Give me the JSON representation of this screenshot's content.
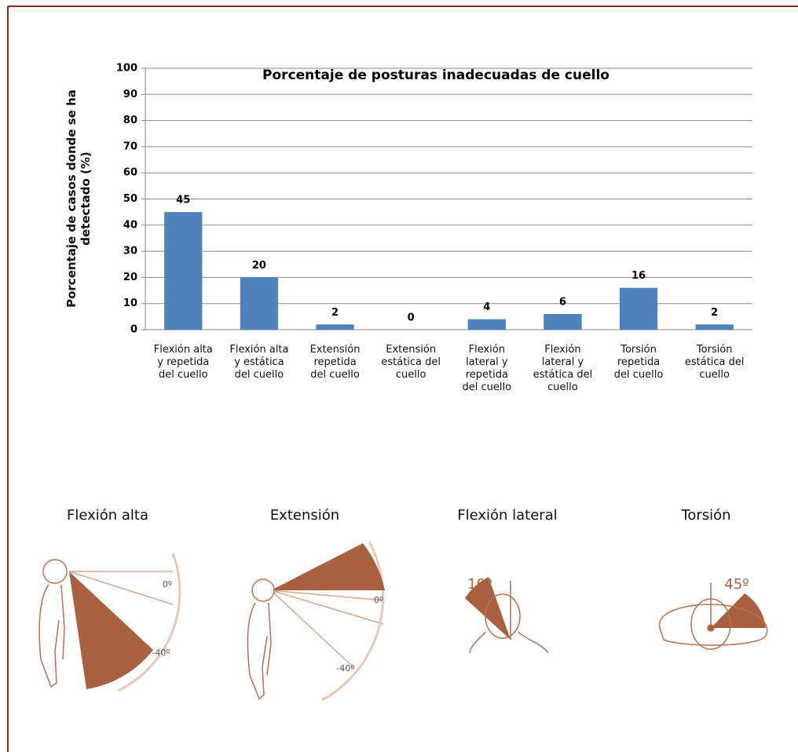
{
  "chart_data": {
    "type": "bar",
    "title": "Porcentaje de posturas inadecuadas de cuello",
    "y_label": "Porcentaje de casos donde se ha\ndetectado (%)",
    "categories": [
      "Flexión alta\ny repetida\ndel cuello",
      "Flexión alta\ny estática\ndel cuello",
      "Extensión\nrepetida\ndel cuello",
      "Extensión\nestática del\ncuello",
      "Flexión\nlateral y\nrepetida\ndel cuello",
      "Flexión\nlateral y\nestática del\ncuello",
      "Torsión\nrepetida\ndel cuello",
      "Torsión\nestática del\ncuello"
    ],
    "values": [
      45,
      20,
      2,
      0,
      4,
      6,
      16,
      2
    ],
    "color": "#4f81bd",
    "ylim": [
      0,
      100
    ],
    "yticks": [
      0,
      10,
      20,
      30,
      40,
      50,
      60,
      70,
      80,
      90,
      100
    ],
    "grid": true
  },
  "postures": [
    {
      "label": "Flexión alta",
      "angles": [
        "0º",
        "-40º"
      ]
    },
    {
      "label": "Extensión",
      "angles": [
        "0º",
        "-40º"
      ]
    },
    {
      "label": "Flexión lateral",
      "angles": [
        "10º"
      ]
    },
    {
      "label": "Torsión",
      "angles": [
        "45º"
      ]
    }
  ]
}
